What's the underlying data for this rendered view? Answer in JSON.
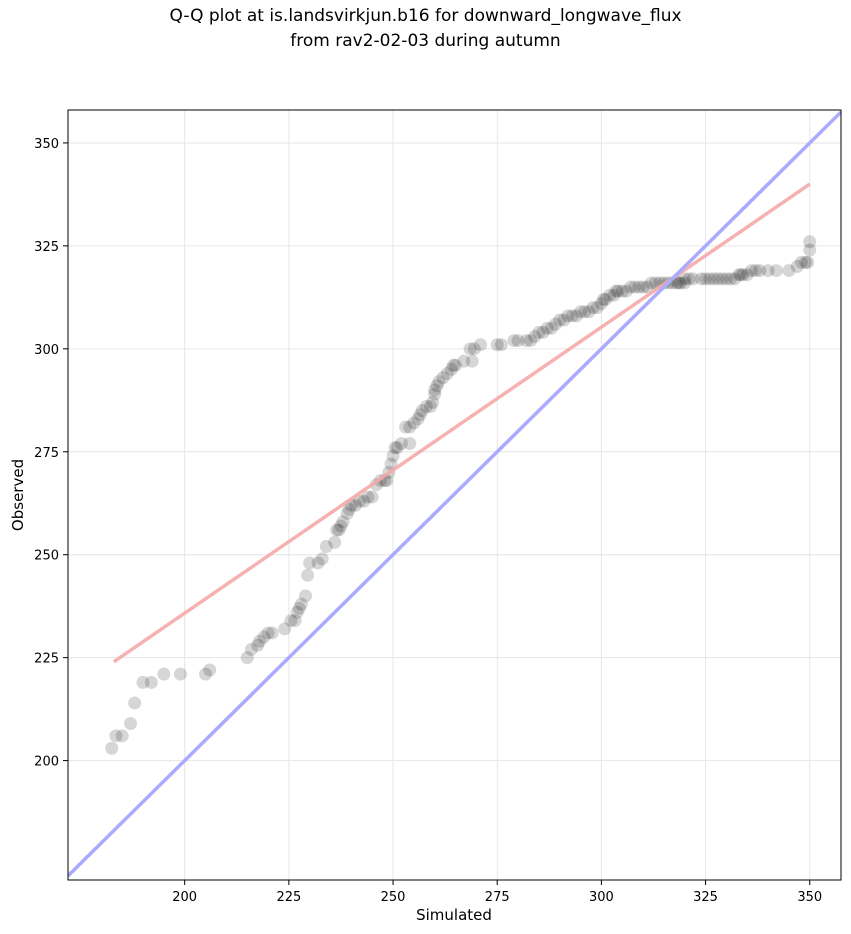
{
  "chart_data": {
    "type": "scatter",
    "title_line1": "Q-Q plot at is.landsvirkjun.b16 for downward_longwave_flux",
    "title_line2": "from rav2-02-03 during autumn",
    "xlabel": "Simulated",
    "ylabel": "Observed",
    "xlim": [
      172,
      357.5
    ],
    "ylim": [
      171,
      358
    ],
    "xticks": [
      200,
      225,
      250,
      275,
      300,
      325,
      350
    ],
    "yticks": [
      200,
      225,
      250,
      275,
      300,
      325,
      350
    ],
    "grid": true,
    "point_color": "#000000",
    "identity_line": {
      "x": [
        172,
        357.5
      ],
      "y": [
        172,
        357.5
      ],
      "color": "#aaaaff"
    },
    "fit_line": {
      "x": [
        183,
        350
      ],
      "y": [
        224,
        340
      ],
      "color": "#f5a8a8"
    },
    "points": [
      [
        182.5,
        203
      ],
      [
        183.5,
        206
      ],
      [
        185,
        206
      ],
      [
        187,
        209
      ],
      [
        188,
        214
      ],
      [
        190,
        219
      ],
      [
        192,
        219
      ],
      [
        195,
        221
      ],
      [
        199,
        221
      ],
      [
        205,
        221
      ],
      [
        206,
        222
      ],
      [
        215,
        225
      ],
      [
        216,
        227
      ],
      [
        217.5,
        228
      ],
      [
        218,
        229
      ],
      [
        219,
        230
      ],
      [
        220,
        231
      ],
      [
        221,
        231
      ],
      [
        224,
        232
      ],
      [
        225.5,
        234
      ],
      [
        226.5,
        234
      ],
      [
        227,
        236
      ],
      [
        227.5,
        237
      ],
      [
        228,
        238
      ],
      [
        229,
        240
      ],
      [
        229.5,
        245
      ],
      [
        230,
        248
      ],
      [
        232,
        248
      ],
      [
        233,
        249
      ],
      [
        234,
        252
      ],
      [
        236,
        253
      ],
      [
        236.5,
        256
      ],
      [
        237,
        256
      ],
      [
        237.5,
        257
      ],
      [
        238,
        258
      ],
      [
        239,
        260
      ],
      [
        239.5,
        261
      ],
      [
        240,
        262
      ],
      [
        241,
        262
      ],
      [
        242,
        263
      ],
      [
        243,
        263
      ],
      [
        244,
        264
      ],
      [
        245,
        264
      ],
      [
        246,
        267
      ],
      [
        247,
        268
      ],
      [
        248,
        268
      ],
      [
        248.5,
        268
      ],
      [
        249,
        270
      ],
      [
        249.5,
        272
      ],
      [
        250,
        274
      ],
      [
        250.5,
        276
      ],
      [
        251,
        276
      ],
      [
        252,
        277
      ],
      [
        254,
        277
      ],
      [
        253,
        281
      ],
      [
        254,
        281
      ],
      [
        255,
        282
      ],
      [
        256,
        283
      ],
      [
        256.5,
        284
      ],
      [
        257,
        285
      ],
      [
        258,
        286
      ],
      [
        259,
        286
      ],
      [
        259.5,
        287
      ],
      [
        260,
        289
      ],
      [
        260,
        290
      ],
      [
        260.5,
        291
      ],
      [
        261,
        292
      ],
      [
        262,
        293
      ],
      [
        263,
        294
      ],
      [
        264,
        295
      ],
      [
        264.5,
        296
      ],
      [
        265,
        296
      ],
      [
        267,
        297
      ],
      [
        269,
        297
      ],
      [
        268.5,
        300
      ],
      [
        269.5,
        300
      ],
      [
        271,
        301
      ],
      [
        275,
        301
      ],
      [
        276,
        301
      ],
      [
        279,
        302
      ],
      [
        280,
        302
      ],
      [
        282,
        302
      ],
      [
        283,
        302
      ],
      [
        284,
        303
      ],
      [
        285,
        304
      ],
      [
        286,
        304
      ],
      [
        287,
        305
      ],
      [
        288,
        305
      ],
      [
        289,
        306
      ],
      [
        290,
        307
      ],
      [
        291,
        307
      ],
      [
        292,
        308
      ],
      [
        293,
        308
      ],
      [
        294,
        308
      ],
      [
        295,
        309
      ],
      [
        296,
        309
      ],
      [
        297,
        309
      ],
      [
        298,
        310
      ],
      [
        299,
        310
      ],
      [
        300,
        311
      ],
      [
        300.5,
        312
      ],
      [
        301,
        312
      ],
      [
        302,
        313
      ],
      [
        303,
        313
      ],
      [
        303.5,
        314
      ],
      [
        304,
        314
      ],
      [
        305,
        314
      ],
      [
        306,
        314
      ],
      [
        307,
        315
      ],
      [
        308,
        315
      ],
      [
        309,
        315
      ],
      [
        310,
        315
      ],
      [
        311,
        315
      ],
      [
        312,
        316
      ],
      [
        313,
        316
      ],
      [
        314,
        316
      ],
      [
        315,
        316
      ],
      [
        316,
        316
      ],
      [
        317,
        316
      ],
      [
        318,
        316
      ],
      [
        318.5,
        316
      ],
      [
        319,
        316
      ],
      [
        320,
        316
      ],
      [
        320,
        317
      ],
      [
        321,
        317
      ],
      [
        322,
        317
      ],
      [
        324,
        317
      ],
      [
        325,
        317
      ],
      [
        326,
        317
      ],
      [
        327,
        317
      ],
      [
        328,
        317
      ],
      [
        329,
        317
      ],
      [
        330,
        317
      ],
      [
        331,
        317
      ],
      [
        332,
        317
      ],
      [
        333,
        318
      ],
      [
        333.5,
        318
      ],
      [
        334,
        318
      ],
      [
        335,
        318
      ],
      [
        336,
        319
      ],
      [
        337,
        319
      ],
      [
        338,
        319
      ],
      [
        340,
        319
      ],
      [
        342,
        319
      ],
      [
        345,
        319
      ],
      [
        347,
        320
      ],
      [
        348,
        321
      ],
      [
        349,
        321
      ],
      [
        349.5,
        321
      ],
      [
        350,
        324
      ],
      [
        350,
        326
      ]
    ]
  }
}
